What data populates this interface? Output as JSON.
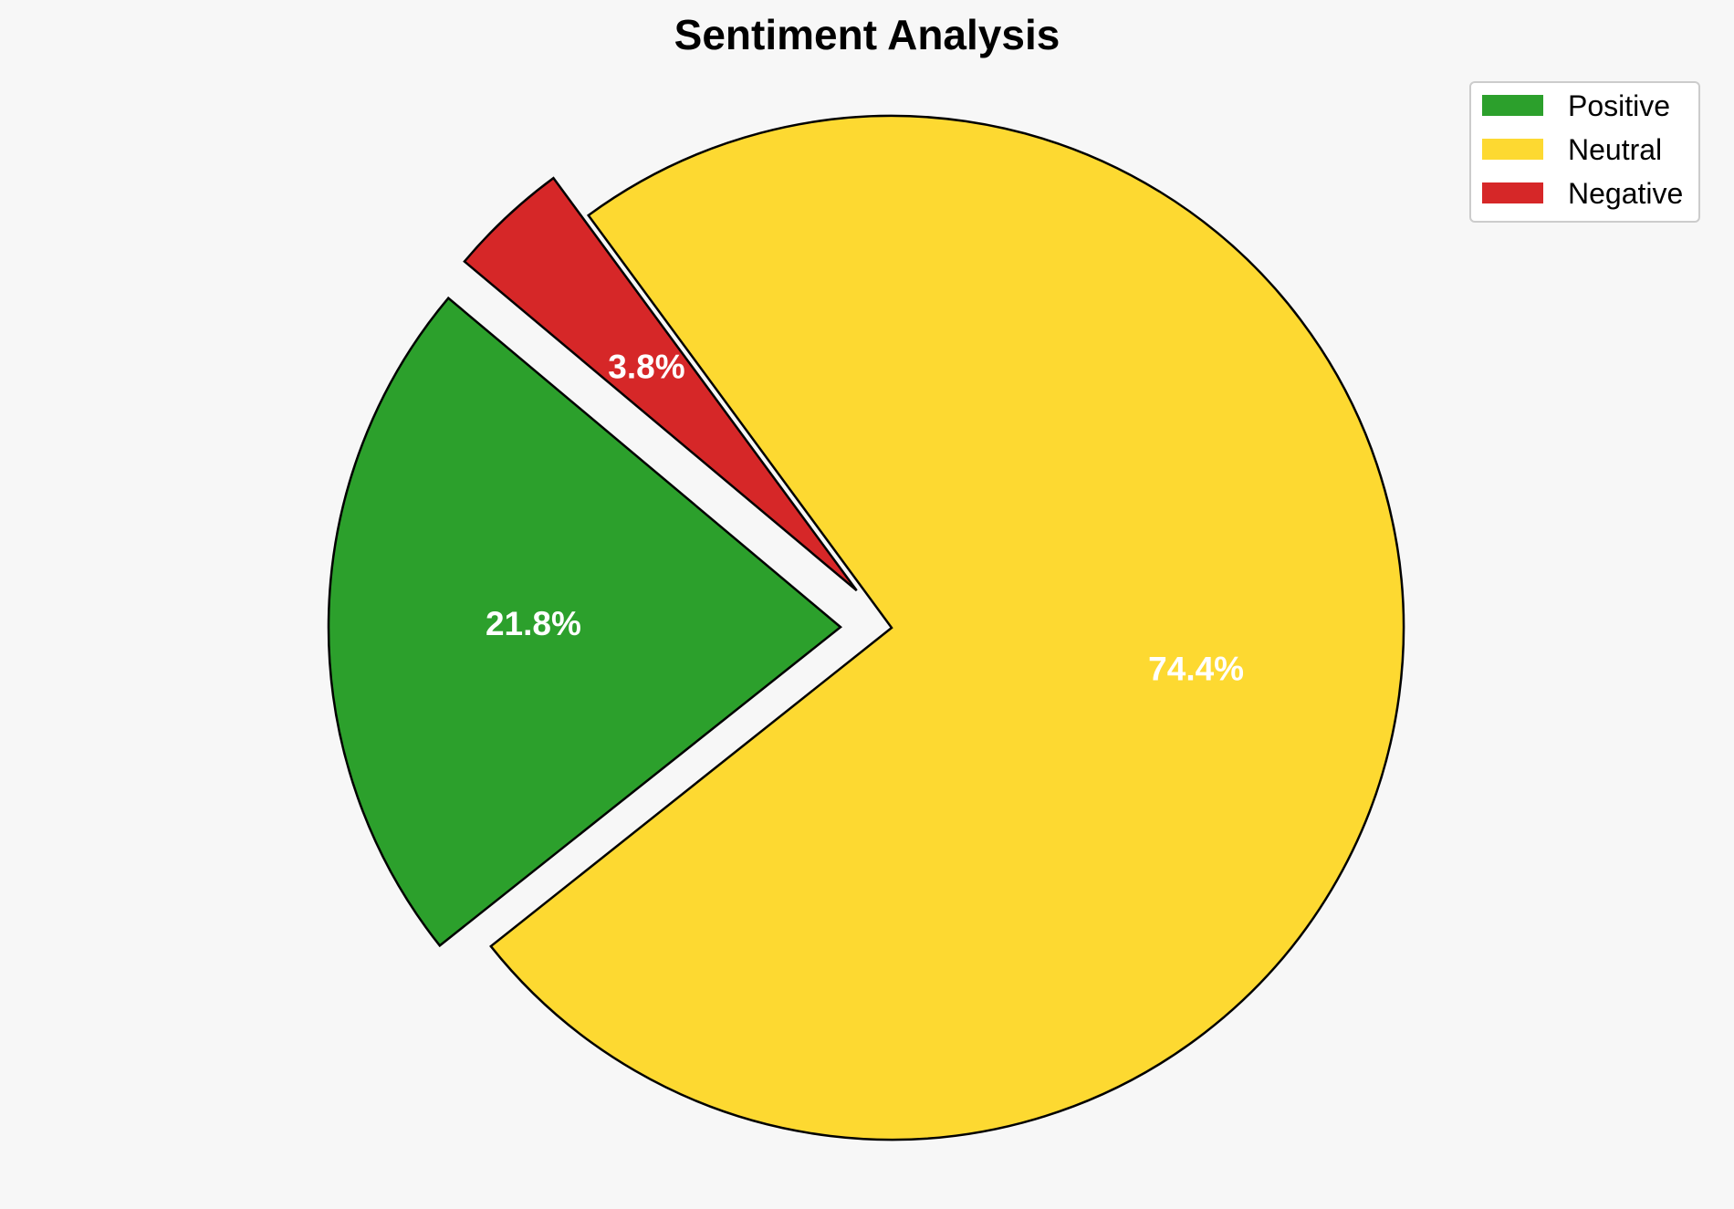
{
  "chart_data": {
    "type": "pie",
    "title": "Sentiment Analysis",
    "slices": [
      {
        "label": "Positive",
        "value": 21.8,
        "display": "21.8%",
        "color": "#2ca02c",
        "exploded": true
      },
      {
        "label": "Neutral",
        "value": 74.4,
        "display": "74.4%",
        "color": "#fdd931",
        "exploded": false
      },
      {
        "label": "Negative",
        "value": 3.8,
        "display": "3.8%",
        "color": "#d62728",
        "exploded": true
      }
    ],
    "start_angle_deg": 140,
    "direction": "counterclockwise",
    "legend": {
      "placement": "top-right",
      "entries": [
        "Positive",
        "Neutral",
        "Negative"
      ]
    },
    "label_color": "#ffffff",
    "edge_color": "#000000",
    "background": "#f7f7f7"
  }
}
